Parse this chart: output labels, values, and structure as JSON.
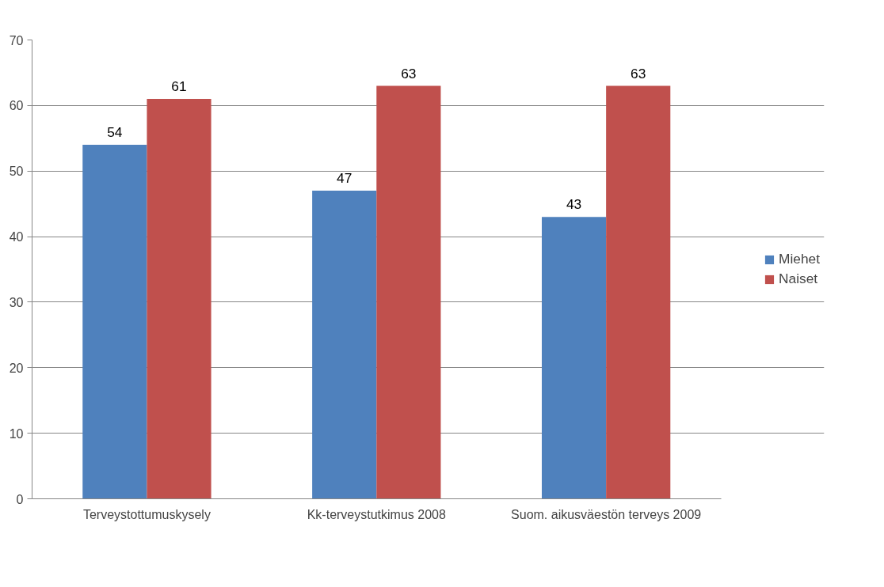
{
  "chart_data": {
    "type": "bar",
    "categories": [
      "Terveystottumuskysely",
      "Kk-terveystutkimus 2008",
      "Suom. aikusväestön terveys 2009"
    ],
    "series": [
      {
        "name": "Miehet",
        "color": "#4f81bd",
        "values": [
          54,
          47,
          43
        ]
      },
      {
        "name": "Naiset",
        "color": "#c0504d",
        "values": [
          61,
          63,
          63
        ]
      }
    ],
    "ylim": [
      0,
      70
    ],
    "yticks": [
      0,
      10,
      20,
      30,
      40,
      50,
      60,
      70
    ],
    "grid": "y",
    "legend": "right",
    "data_labels": true
  }
}
